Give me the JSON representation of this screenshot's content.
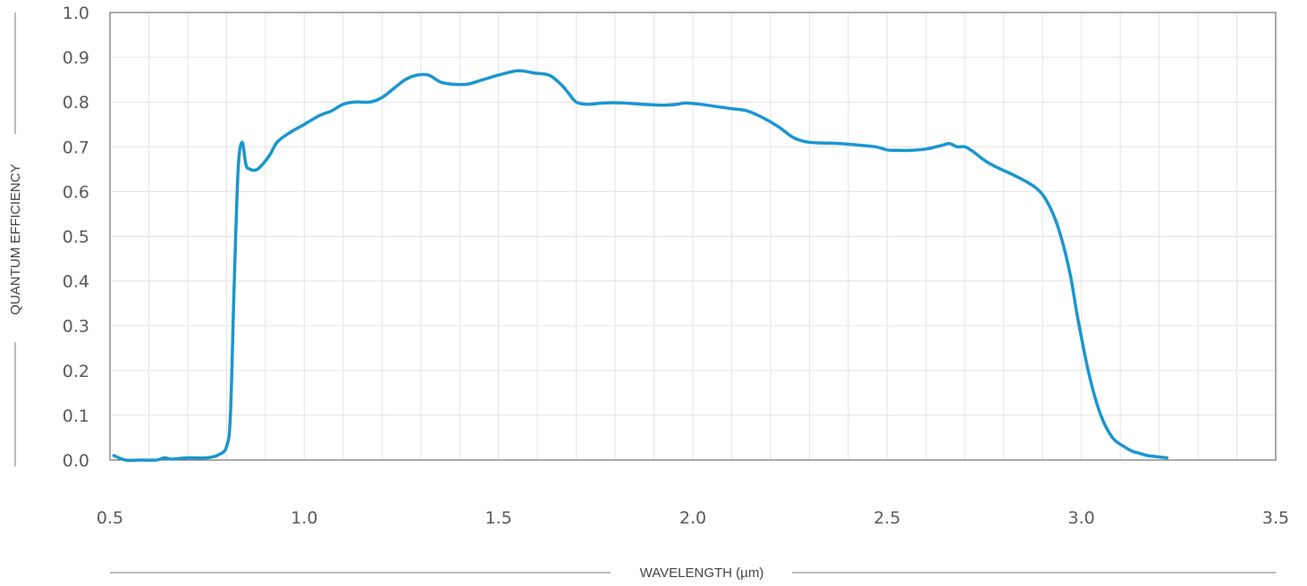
{
  "chart_data": {
    "type": "line",
    "title": "",
    "xlabel": "WAVELENGTH (µm)",
    "ylabel": "QUANTUM EFFICIENCY",
    "xlim": [
      0.5,
      3.5
    ],
    "ylim": [
      0.0,
      1.0
    ],
    "x_ticks": [
      "0.5",
      "1.0",
      "1.5",
      "2.0",
      "2.5",
      "3.0",
      "3.5"
    ],
    "y_ticks": [
      "0.0",
      "0.1",
      "0.2",
      "0.3",
      "0.4",
      "0.5",
      "0.6",
      "0.7",
      "0.8",
      "0.9",
      "1.0"
    ],
    "grid": true,
    "legend": "none",
    "color": "#1a96d0",
    "series": [
      {
        "x": [
          0.51,
          0.54,
          0.58,
          0.62,
          0.64,
          0.66,
          0.7,
          0.75,
          0.78,
          0.8,
          0.81,
          0.82,
          0.83,
          0.84,
          0.85,
          0.86,
          0.88,
          0.91,
          0.93,
          0.96,
          1.0,
          1.04,
          1.07,
          1.1,
          1.13,
          1.17,
          1.2,
          1.23,
          1.26,
          1.29,
          1.32,
          1.35,
          1.38,
          1.42,
          1.46,
          1.5,
          1.55,
          1.59,
          1.63,
          1.66,
          1.68,
          1.7,
          1.73,
          1.77,
          1.82,
          1.87,
          1.92,
          1.96,
          1.98,
          2.02,
          2.06,
          2.1,
          2.14,
          2.18,
          2.22,
          2.26,
          2.3,
          2.36,
          2.41,
          2.47,
          2.5,
          2.53,
          2.56,
          2.6,
          2.64,
          2.66,
          2.68,
          2.7,
          2.72,
          2.75,
          2.78,
          2.83,
          2.88,
          2.91,
          2.94,
          2.97,
          2.99,
          3.02,
          3.05,
          3.08,
          3.11,
          3.13,
          3.15,
          3.17,
          3.2,
          3.22
        ],
        "y": [
          0.01,
          0.0,
          0.0,
          0.0,
          0.005,
          0.002,
          0.005,
          0.005,
          0.012,
          0.03,
          0.1,
          0.4,
          0.65,
          0.71,
          0.66,
          0.65,
          0.65,
          0.68,
          0.71,
          0.73,
          0.75,
          0.77,
          0.78,
          0.795,
          0.8,
          0.8,
          0.81,
          0.83,
          0.85,
          0.86,
          0.86,
          0.845,
          0.84,
          0.84,
          0.85,
          0.86,
          0.87,
          0.865,
          0.86,
          0.84,
          0.82,
          0.8,
          0.795,
          0.798,
          0.798,
          0.795,
          0.793,
          0.795,
          0.798,
          0.795,
          0.79,
          0.785,
          0.78,
          0.765,
          0.745,
          0.72,
          0.71,
          0.708,
          0.705,
          0.7,
          0.693,
          0.692,
          0.692,
          0.695,
          0.703,
          0.707,
          0.7,
          0.7,
          0.69,
          0.67,
          0.655,
          0.635,
          0.61,
          0.58,
          0.52,
          0.42,
          0.32,
          0.19,
          0.1,
          0.05,
          0.03,
          0.02,
          0.015,
          0.01,
          0.007,
          0.005
        ]
      }
    ]
  }
}
